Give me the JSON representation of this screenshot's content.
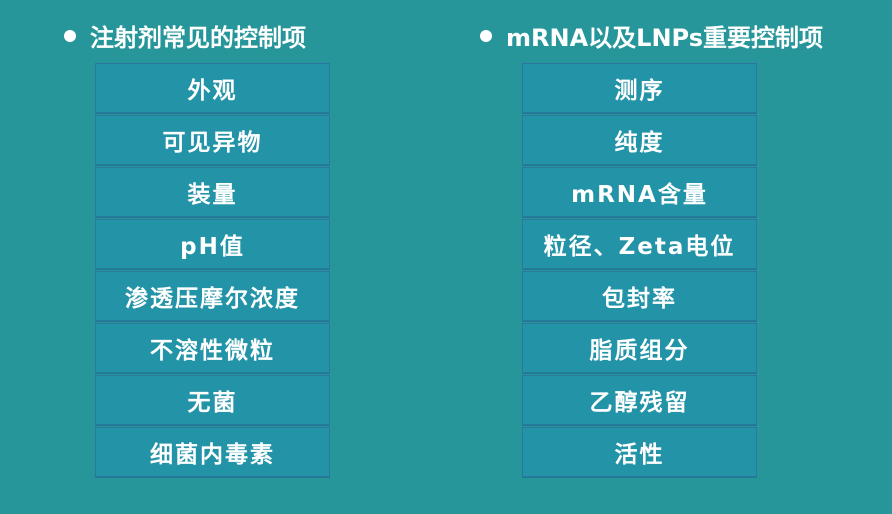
{
  "left": {
    "title": "注射剂常见的控制项",
    "items": [
      "外观",
      "可见异物",
      "装量",
      "pH值",
      "渗透压摩尔浓度",
      "不溶性微粒",
      "无菌",
      "细菌内毒素"
    ]
  },
  "right": {
    "title": "mRNA以及LNPs重要控制项",
    "items": [
      "测序",
      "纯度",
      "mRNA含量",
      "粒径、Zeta电位",
      "包封率",
      "脂质组分",
      "乙醇残留",
      "活性"
    ]
  },
  "colors": {
    "background": "#26969a",
    "cell": "#2393a8",
    "border": "#2a78a0"
  }
}
